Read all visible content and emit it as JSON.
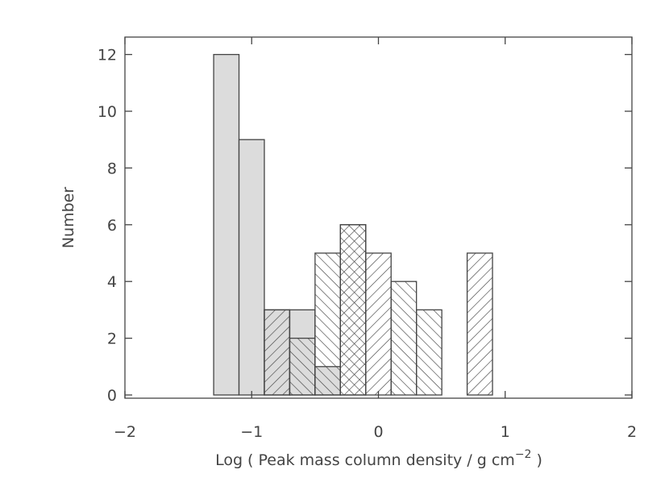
{
  "chart_data": {
    "type": "bar",
    "subtype": "histogram",
    "xlabel": "Log ( Peak mass column density / g cm",
    "xlabel_superscript": "−2",
    "xlabel_suffix": " )",
    "ylabel": "Number",
    "xlim": [
      -2,
      2
    ],
    "ylim": [
      0,
      13
    ],
    "x_ticks": [
      -2,
      -1,
      0,
      1,
      2
    ],
    "x_tick_labels": [
      "−2",
      "−1",
      "0",
      "1",
      "2"
    ],
    "y_ticks": [
      0,
      2,
      4,
      6,
      8,
      10,
      12
    ],
    "y_tick_labels": [
      "0",
      "2",
      "4",
      "6",
      "8",
      "10",
      "12"
    ],
    "bin_width": 0.2,
    "grid": false,
    "legend": "none",
    "colors": {
      "gray_fill": "#dcdcdc",
      "outline": "#444444",
      "hatch": "#444444"
    },
    "series": [
      {
        "style": "gray-filled",
        "bins": [
          {
            "x0": -1.3,
            "x1": -1.1,
            "value": 12
          },
          {
            "x0": -1.1,
            "x1": -0.9,
            "value": 9
          },
          {
            "x0": -0.9,
            "x1": -0.7,
            "value": 3
          },
          {
            "x0": -0.7,
            "x1": -0.5,
            "value": 3
          },
          {
            "x0": -0.5,
            "x1": -0.3,
            "value": 1
          }
        ]
      },
      {
        "style": "hatch-forward",
        "bins": [
          {
            "x0": -0.9,
            "x1": -0.7,
            "value": 3
          },
          {
            "x0": -0.3,
            "x1": -0.1,
            "value": 6
          },
          {
            "x0": -0.1,
            "x1": 0.1,
            "value": 5
          },
          {
            "x0": 0.7,
            "x1": 0.9,
            "value": 5
          }
        ]
      },
      {
        "style": "hatch-back",
        "bins": [
          {
            "x0": -0.7,
            "x1": -0.5,
            "value": 2
          },
          {
            "x0": -0.5,
            "x1": -0.3,
            "value": 5
          },
          {
            "x0": -0.3,
            "x1": -0.1,
            "value": 6
          },
          {
            "x0": 0.1,
            "x1": 0.3,
            "value": 4
          },
          {
            "x0": 0.3,
            "x1": 0.5,
            "value": 3
          }
        ]
      }
    ]
  }
}
